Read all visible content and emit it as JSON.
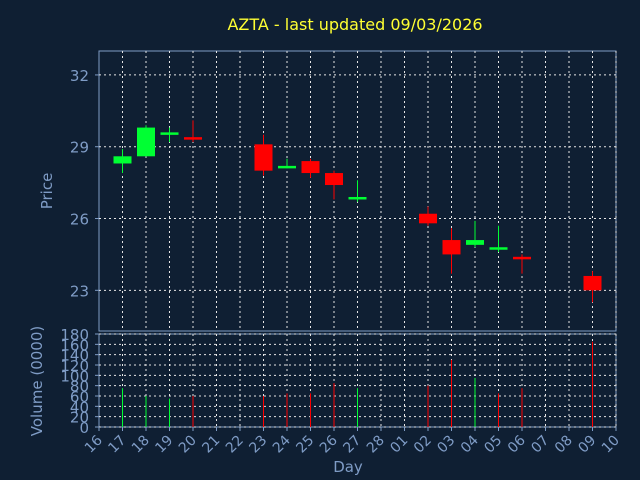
{
  "title": "AZTA - last updated 09/03/2026",
  "colors": {
    "background": "#0f1f33",
    "axis": "#7f9cc6",
    "title": "#ffff33",
    "up": "#00ff33",
    "down": "#ff0000",
    "grid": "#e6e6e6"
  },
  "chart_data": [
    {
      "type": "candlestick",
      "ylabel": "Price",
      "ylim": [
        21.3,
        33.0
      ],
      "yticks": [
        23,
        26,
        29,
        32
      ],
      "grid": true,
      "x_labels": [
        "16",
        "17",
        "18",
        "19",
        "20",
        "21",
        "22",
        "23",
        "24",
        "25",
        "26",
        "27",
        "28",
        "01",
        "02",
        "03",
        "04",
        "05",
        "06",
        "07",
        "08",
        "09",
        "10"
      ],
      "candles": [
        {
          "day": "17",
          "open": 28.3,
          "close": 28.6,
          "high": 28.9,
          "low": 27.9
        },
        {
          "day": "18",
          "open": 28.6,
          "close": 29.8,
          "high": 29.9,
          "low": 28.6
        },
        {
          "day": "19",
          "open": 29.6,
          "close": 29.6,
          "high": 29.8,
          "low": 29.2
        },
        {
          "day": "20",
          "open": 29.4,
          "close": 29.3,
          "high": 30.1,
          "low": 29.2
        },
        {
          "day": "23",
          "open": 29.1,
          "close": 28.0,
          "high": 29.5,
          "low": 27.8
        },
        {
          "day": "24",
          "open": 28.2,
          "close": 28.2,
          "high": 28.5,
          "low": 28.1
        },
        {
          "day": "25",
          "open": 28.4,
          "close": 27.9,
          "high": 28.5,
          "low": 27.7
        },
        {
          "day": "26",
          "open": 27.9,
          "close": 27.4,
          "high": 28.0,
          "low": 26.8
        },
        {
          "day": "27",
          "open": 26.8,
          "close": 26.9,
          "high": 27.6,
          "low": 26.7
        },
        {
          "day": "02",
          "open": 26.2,
          "close": 25.8,
          "high": 26.5,
          "low": 25.7
        },
        {
          "day": "03",
          "open": 25.1,
          "close": 24.5,
          "high": 25.6,
          "low": 23.7
        },
        {
          "day": "04",
          "open": 24.9,
          "close": 25.1,
          "high": 25.9,
          "low": 24.8
        },
        {
          "day": "05",
          "open": 24.8,
          "close": 24.8,
          "high": 25.7,
          "low": 24.6
        },
        {
          "day": "06",
          "open": 24.4,
          "close": 24.3,
          "high": 24.5,
          "low": 23.7
        },
        {
          "day": "09",
          "open": 23.6,
          "close": 23.0,
          "high": 23.8,
          "low": 22.5
        }
      ]
    },
    {
      "type": "bar",
      "ylabel": "Volume (0000)",
      "xlabel": "Day",
      "ylim": [
        0,
        180
      ],
      "yticks": [
        0,
        20,
        40,
        60,
        80,
        100,
        120,
        140,
        160,
        180
      ],
      "grid": true,
      "categories": [
        "17",
        "18",
        "19",
        "20",
        "23",
        "24",
        "25",
        "26",
        "27",
        "02",
        "03",
        "04",
        "05",
        "06",
        "09"
      ],
      "values": [
        75,
        60,
        55,
        60,
        60,
        65,
        65,
        85,
        75,
        80,
        130,
        95,
        65,
        75,
        165
      ],
      "direction": [
        "up",
        "up",
        "up",
        "down",
        "down",
        "down",
        "down",
        "down",
        "up",
        "down",
        "down",
        "up",
        "down",
        "down",
        "down"
      ]
    }
  ]
}
